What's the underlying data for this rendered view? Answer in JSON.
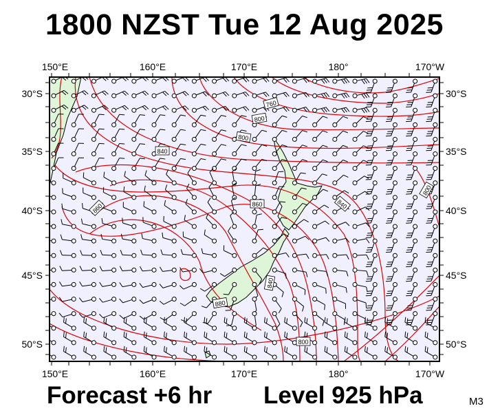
{
  "title": "1800 NZST Tue 12 Aug 2025",
  "footer": {
    "forecast": "Forecast +6 hr",
    "level": "Level 925 hPa",
    "model": "M3"
  },
  "map": {
    "projection": "lat-lon",
    "lon_range": [
      150,
      190
    ],
    "lat_range": [
      -52.5,
      -28
    ],
    "top_labels": [
      "150°E",
      "160°E",
      "170°E",
      "180°",
      "170°W"
    ],
    "bottom_labels": [
      "150°E",
      "160°E",
      "170°E",
      "180°",
      "170°W"
    ],
    "left_labels": [
      "30°S",
      "35°S",
      "40°S",
      "45°S",
      "50°S"
    ],
    "right_labels": [
      "30°S",
      "35°S",
      "40°S",
      "45°S",
      "50°S"
    ],
    "contour_labels": [
      "760",
      "800",
      "800",
      "840",
      "860",
      "860",
      "840",
      "800",
      "840",
      "880",
      "800"
    ],
    "colors": {
      "ocean": "#f0f0ff",
      "land": "#dff5d8",
      "contour": "#e00000",
      "wind": "#000000"
    },
    "overlays": [
      "geopotential-height-contours",
      "wind-barbs"
    ]
  }
}
